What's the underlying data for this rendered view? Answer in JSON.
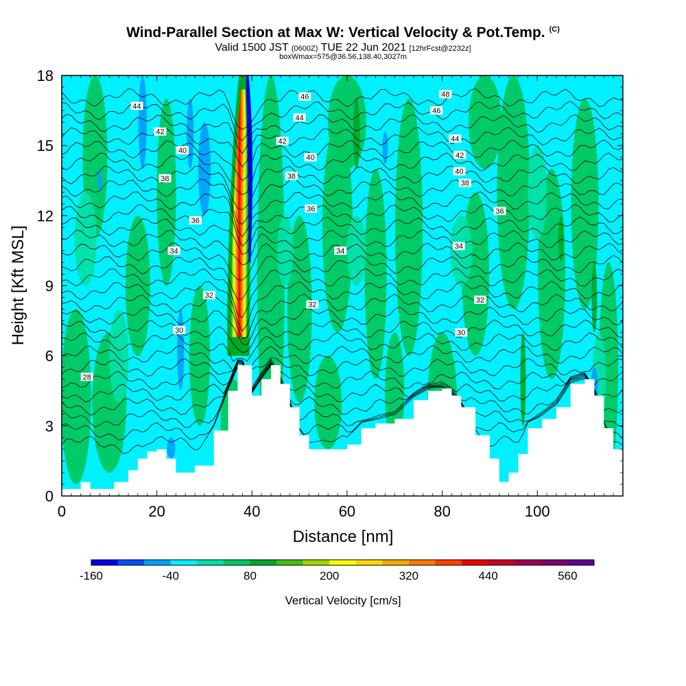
{
  "header": {
    "title": "Wind-Parallel Section at Max W: Vertical Velocity & Pot.Temp.",
    "copyright": "(C)",
    "valid_prefix": "Valid 1500 JST",
    "valid_utc": "(0600Z)",
    "valid_date": "TUE 22 Jun 2021",
    "forecast": "[12hrFcst@2232z]",
    "box_info": "boxWmax=575@36.56,138.40,3027m"
  },
  "chart_data": {
    "type": "heatmap",
    "title": "Wind-Parallel Section at Max W: Vertical Velocity & Pot.Temp.",
    "xlabel": "Distance [nm]",
    "ylabel": "Height [Kft MSL]",
    "xlim": [
      0,
      118
    ],
    "ylim": [
      0,
      18
    ],
    "x_ticks": [
      0,
      20,
      40,
      60,
      80,
      100
    ],
    "y_ticks": [
      0,
      3,
      6,
      9,
      12,
      15,
      18
    ],
    "colorbar": {
      "label": "Vertical Velocity [cm/s]",
      "ticks": [
        -160,
        -40,
        80,
        200,
        320,
        440,
        560
      ],
      "levels": [
        -160,
        -120,
        -80,
        -40,
        0,
        40,
        80,
        120,
        160,
        200,
        240,
        280,
        320,
        360,
        400,
        440,
        480,
        520,
        560,
        600
      ],
      "colors": [
        "#0000ee",
        "#0050ff",
        "#00a0ff",
        "#00f0ff",
        "#00e0a8",
        "#00c860",
        "#00a828",
        "#40c010",
        "#a0d800",
        "#ffff00",
        "#ffd800",
        "#ffa800",
        "#ff7800",
        "#ff4000",
        "#ee0000",
        "#c80028",
        "#a00050",
        "#800070",
        "#600090"
      ]
    },
    "terrain_height_kft": {
      "x": [
        0,
        4,
        6,
        8,
        11,
        14,
        16,
        18,
        20,
        22,
        24,
        28,
        32,
        35,
        37,
        38,
        40,
        42,
        44,
        46,
        48,
        50,
        52,
        54,
        56,
        58,
        60,
        63,
        66,
        70,
        74,
        77,
        80,
        82,
        84,
        87,
        90,
        92,
        93,
        94,
        96,
        98,
        101,
        104,
        107,
        110,
        112,
        114,
        116,
        118
      ],
      "y": [
        0.3,
        0.6,
        0.3,
        0.3,
        0.6,
        1.1,
        1.6,
        1.9,
        2.0,
        1.6,
        1.0,
        1.3,
        2.8,
        4.5,
        5.6,
        5.6,
        4.3,
        5.0,
        5.6,
        4.8,
        3.8,
        2.6,
        2.0,
        2.0,
        2.0,
        2.0,
        2.2,
        2.9,
        3.1,
        3.3,
        4.1,
        4.5,
        4.6,
        4.3,
        3.8,
        2.6,
        1.6,
        0.6,
        0.6,
        1.0,
        1.8,
        2.9,
        3.3,
        3.8,
        4.8,
        5.0,
        4.3,
        2.9,
        2.0,
        1.5
      ]
    },
    "updraft_core": {
      "x": 38,
      "y_range": [
        6,
        18
      ],
      "max_w": 575
    },
    "theta_contour_labels": [
      {
        "value": 28,
        "x": 5.3,
        "y": 5.1
      },
      {
        "value": 30,
        "x": 24.7,
        "y": 7.1
      },
      {
        "value": 32,
        "x": 31.0,
        "y": 8.6
      },
      {
        "value": 32,
        "x": 52.7,
        "y": 8.2
      },
      {
        "value": 32,
        "x": 88.0,
        "y": 8.4
      },
      {
        "value": 30,
        "x": 84.0,
        "y": 7.0
      },
      {
        "value": 34,
        "x": 23.6,
        "y": 10.5
      },
      {
        "value": 34,
        "x": 58.6,
        "y": 10.5
      },
      {
        "value": 34,
        "x": 83.5,
        "y": 10.7
      },
      {
        "value": 36,
        "x": 28.1,
        "y": 11.8
      },
      {
        "value": 36,
        "x": 52.4,
        "y": 12.3
      },
      {
        "value": 36,
        "x": 92.1,
        "y": 12.2
      },
      {
        "value": 38,
        "x": 21.7,
        "y": 13.6
      },
      {
        "value": 38,
        "x": 48.3,
        "y": 13.7
      },
      {
        "value": 38,
        "x": 84.8,
        "y": 13.4
      },
      {
        "value": 40,
        "x": 25.4,
        "y": 14.8
      },
      {
        "value": 40,
        "x": 52.3,
        "y": 14.5
      },
      {
        "value": 40,
        "x": 83.6,
        "y": 13.9
      },
      {
        "value": 42,
        "x": 20.7,
        "y": 15.6
      },
      {
        "value": 42,
        "x": 46.4,
        "y": 15.2
      },
      {
        "value": 42,
        "x": 83.7,
        "y": 14.6
      },
      {
        "value": 44,
        "x": 15.8,
        "y": 16.7
      },
      {
        "value": 44,
        "x": 50.0,
        "y": 16.2
      },
      {
        "value": 44,
        "x": 82.7,
        "y": 15.3
      },
      {
        "value": 46,
        "x": 51.1,
        "y": 17.1
      },
      {
        "value": 46,
        "x": 78.8,
        "y": 16.5
      },
      {
        "value": 48,
        "x": 80.7,
        "y": 17.2
      }
    ]
  }
}
